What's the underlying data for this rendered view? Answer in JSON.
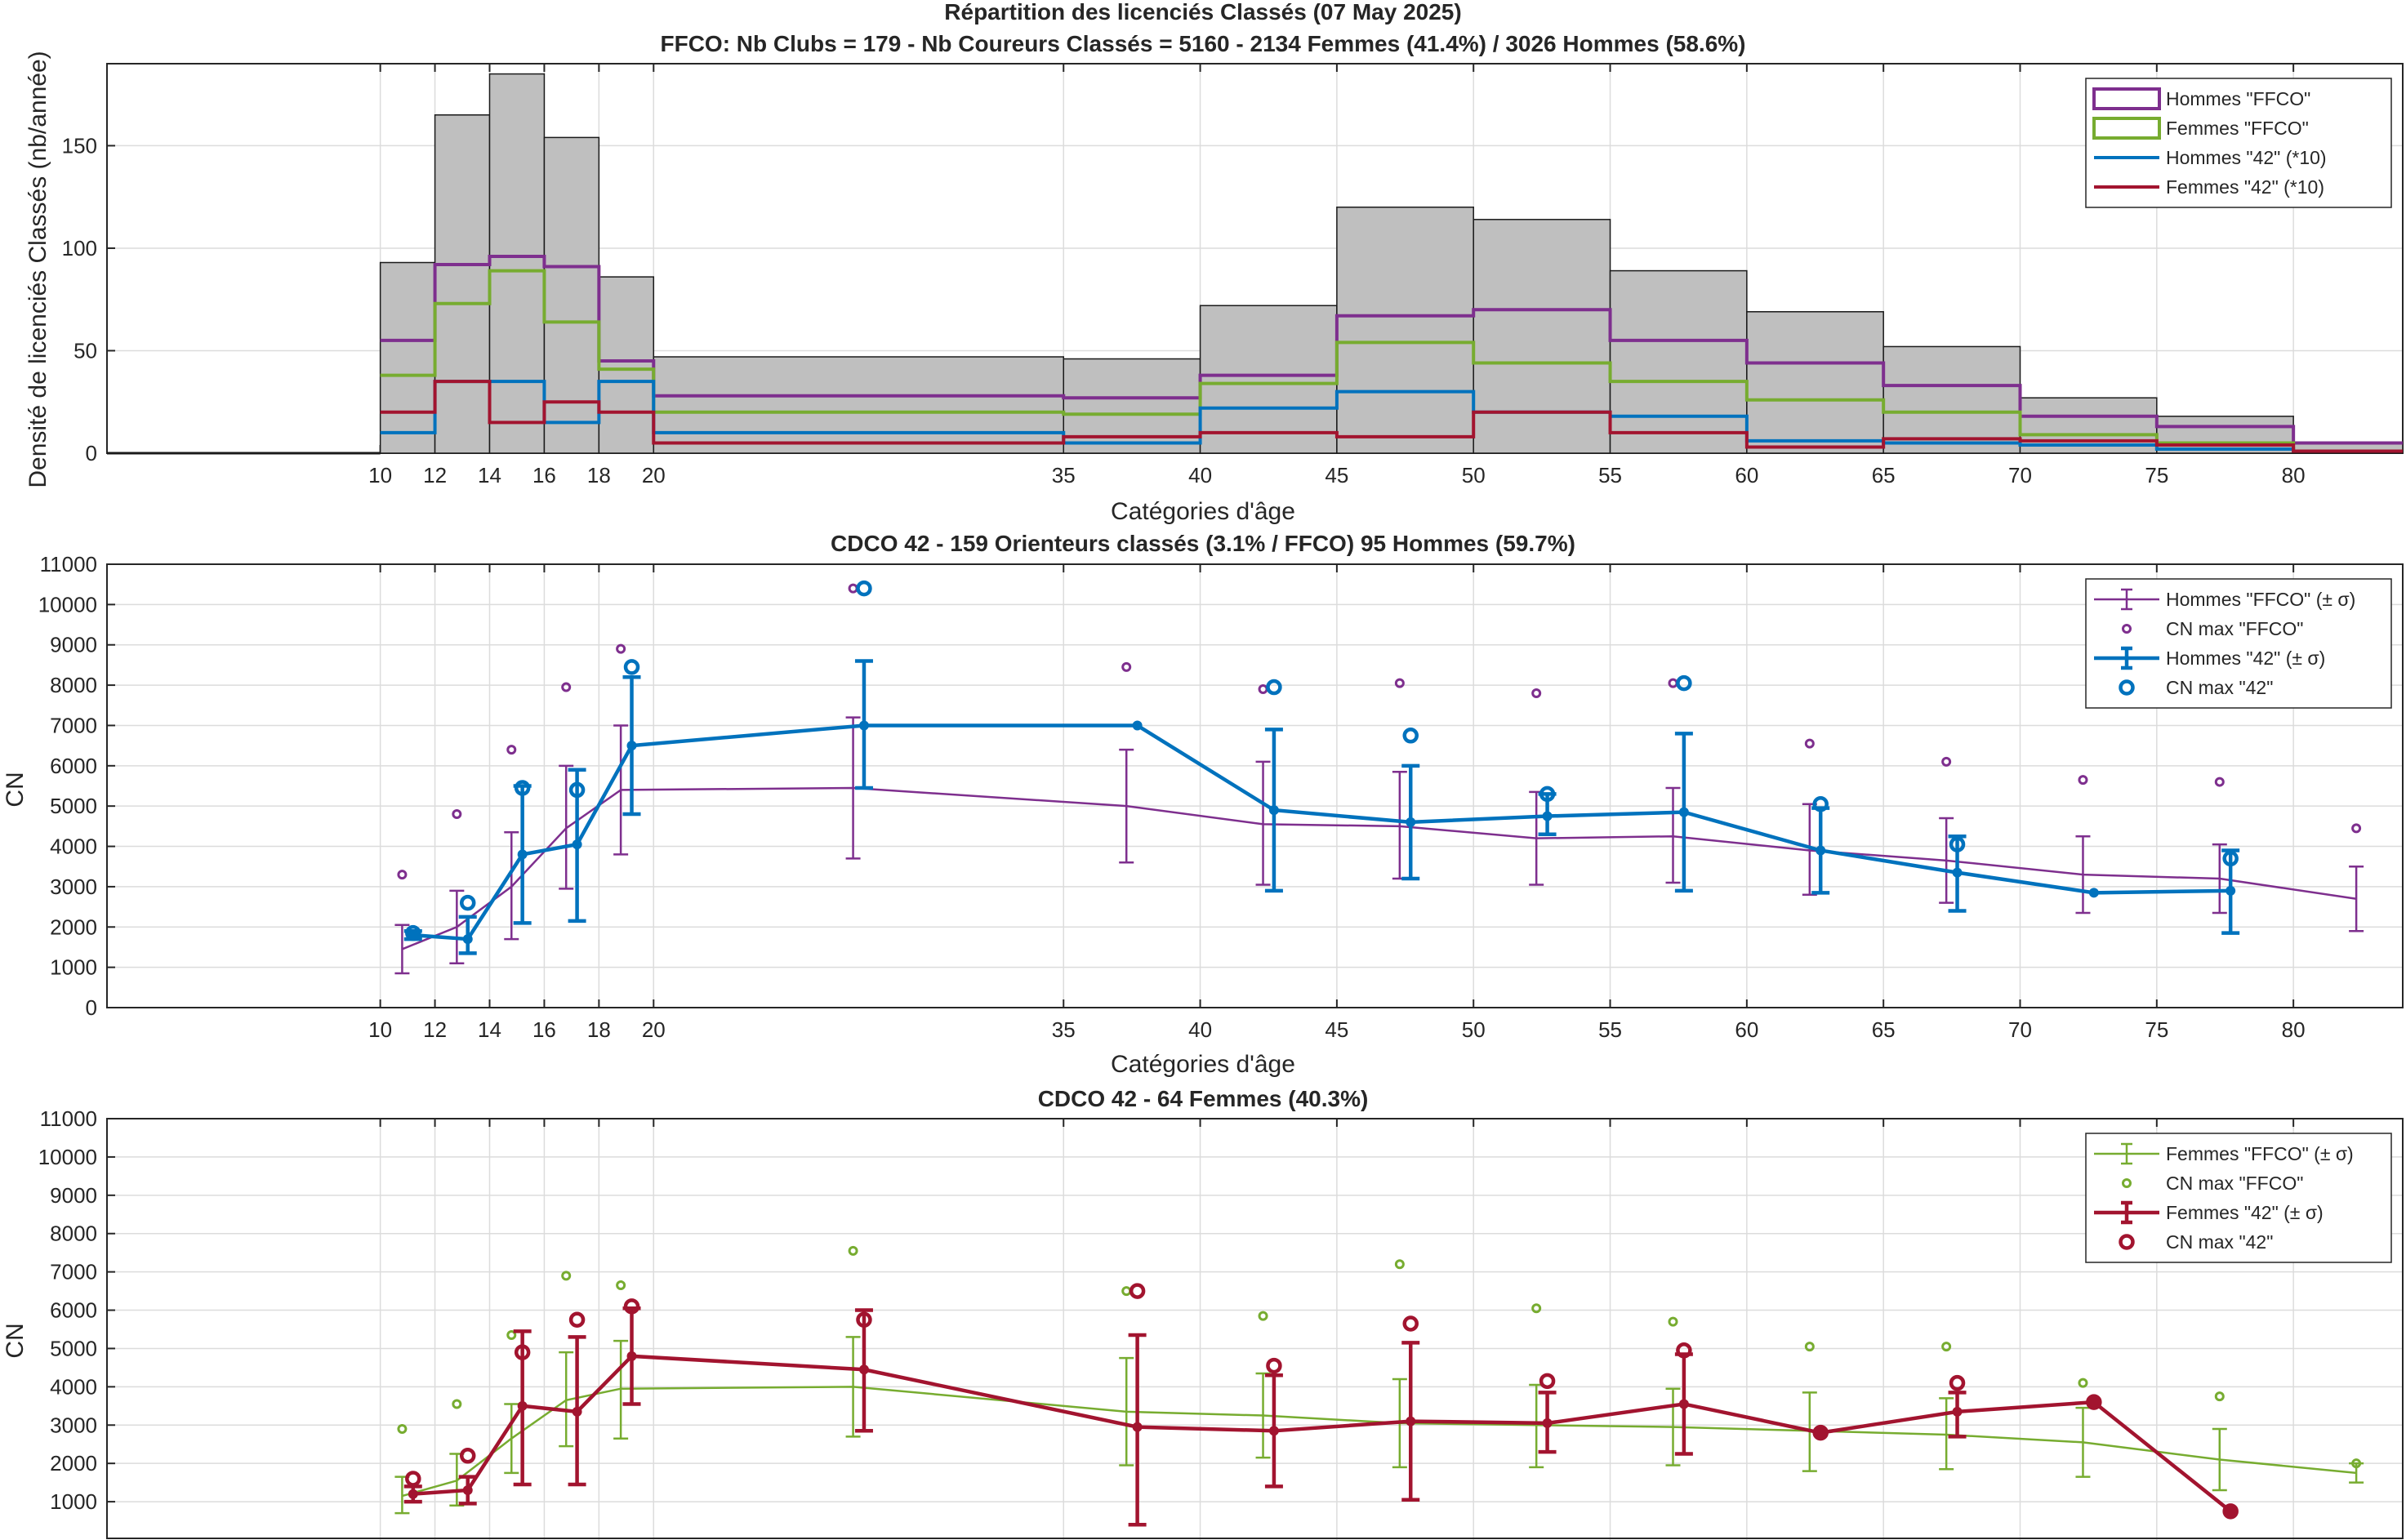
{
  "figure": {
    "title_line1": "Répartition des licenciés Classés (07 May 2025)",
    "title_line2": "FFCO: Nb Clubs = 179   -   Nb Coureurs Classés = 5160   -   2134 Femmes (41.4%) / 3026 Hommes (58.6%)"
  },
  "colors": {
    "hommes_ffco": "#7E2F8E",
    "femmes_ffco": "#77AC30",
    "hommes_42": "#0072BD",
    "femmes_42": "#A2142F",
    "bars": "#BFBFBF"
  },
  "chart_data": [
    {
      "type": "bar",
      "title": "",
      "xlabel": "Catégories d'âge",
      "ylabel": "Densité de licenciés Classés (nb/année)",
      "xlim": [
        0,
        84
      ],
      "ylim": [
        0,
        190
      ],
      "xticks": [
        10,
        12,
        14,
        16,
        18,
        20,
        35,
        40,
        45,
        50,
        55,
        60,
        65,
        70,
        75,
        80
      ],
      "yticks": [
        0,
        50,
        100,
        150
      ],
      "grid": true,
      "legend_position": "top-right",
      "bins": [
        [
          10,
          12
        ],
        [
          12,
          14
        ],
        [
          14,
          16
        ],
        [
          16,
          18
        ],
        [
          18,
          20
        ],
        [
          20,
          35
        ],
        [
          35,
          40
        ],
        [
          40,
          45
        ],
        [
          45,
          50
        ],
        [
          50,
          55
        ],
        [
          55,
          60
        ],
        [
          60,
          65
        ],
        [
          65,
          70
        ],
        [
          70,
          75
        ],
        [
          75,
          80
        ],
        [
          80,
          84
        ]
      ],
      "bar_values": [
        93,
        165,
        185,
        154,
        86,
        47,
        46,
        72,
        120,
        114,
        89,
        69,
        52,
        27,
        18,
        5
      ],
      "series": [
        {
          "name": "Hommes \"FFCO\"",
          "values": [
            55,
            92,
            96,
            91,
            45,
            28,
            27,
            38,
            67,
            70,
            55,
            44,
            33,
            18,
            13,
            5
          ]
        },
        {
          "name": "Femmes \"FFCO\"",
          "values": [
            38,
            73,
            89,
            64,
            41,
            20,
            19,
            34,
            54,
            44,
            35,
            26,
            20,
            9,
            5,
            1
          ]
        },
        {
          "name": "Hommes \"42\" (*10)",
          "values": [
            10,
            35,
            35,
            15,
            35,
            10,
            5,
            22,
            30,
            20,
            18,
            6,
            5,
            4,
            2,
            1
          ]
        },
        {
          "name": "Femmes \"42\" (*10)",
          "values": [
            20,
            35,
            15,
            25,
            20,
            5,
            8,
            10,
            8,
            20,
            10,
            3,
            7,
            6,
            4,
            1
          ]
        }
      ]
    },
    {
      "type": "line",
      "title": "CDCO 42  -  159 Orienteurs classés (3.1% / FFCO)  95 Hommes (59.7%)",
      "xlabel": "Catégories d'âge",
      "ylabel": "CN",
      "xlim": [
        0,
        84
      ],
      "ylim": [
        0,
        11000
      ],
      "xticks": [
        10,
        12,
        14,
        16,
        18,
        20,
        35,
        40,
        45,
        50,
        55,
        60,
        65,
        70,
        75,
        80
      ],
      "yticks": [
        0,
        1000,
        2000,
        3000,
        4000,
        5000,
        6000,
        7000,
        8000,
        9000,
        10000,
        11000
      ],
      "grid": true,
      "legend_position": "top-right",
      "legend": [
        "Hommes \"FFCO\" (± σ)",
        "CN max \"FFCO\"",
        "Hommes \"42\" (± σ)",
        "CN max \"42\""
      ],
      "ffco": {
        "x": [
          10.8,
          12.8,
          14.8,
          16.8,
          18.8,
          27.3,
          37.3,
          42.3,
          47.3,
          52.3,
          57.3,
          62.3,
          67.3,
          72.3,
          77.3,
          82.3
        ],
        "mean": [
          1450,
          2000,
          3000,
          4450,
          5400,
          5450,
          5000,
          4550,
          4500,
          4200,
          4250,
          3900,
          3650,
          3300,
          3200,
          2700
        ],
        "lower": [
          850,
          1100,
          1700,
          2950,
          3800,
          3700,
          3600,
          3050,
          3200,
          3050,
          3100,
          2800,
          2600,
          2350,
          2350,
          1900
        ],
        "upper": [
          2050,
          2900,
          4350,
          6000,
          7000,
          7200,
          6400,
          6100,
          5850,
          5350,
          5450,
          5050,
          4700,
          4250,
          4050,
          3500
        ],
        "cn_max": [
          3300,
          4800,
          6400,
          7950,
          8900,
          10400,
          8450,
          7900,
          8050,
          7800,
          8050,
          6550,
          6100,
          5650,
          5600,
          4450
        ]
      },
      "cd42": {
        "x": [
          11.2,
          13.2,
          15.2,
          17.2,
          19.2,
          27.7,
          37.7,
          42.7,
          47.7,
          52.7,
          57.7,
          62.7,
          67.7,
          72.7,
          77.7
        ],
        "mean": [
          1800,
          1700,
          3800,
          4050,
          6500,
          7000,
          7000,
          4900,
          4600,
          4750,
          4850,
          3900,
          3350,
          2850,
          2900
        ],
        "lower": [
          1700,
          1350,
          2100,
          2150,
          4800,
          5450,
          null,
          2900,
          3200,
          4300,
          2900,
          2850,
          2400,
          null,
          1850
        ],
        "upper": [
          1900,
          2250,
          5500,
          5900,
          8200,
          8600,
          null,
          6900,
          6000,
          5300,
          6800,
          4950,
          4250,
          null,
          3900
        ],
        "cn_max": [
          1850,
          2600,
          5450,
          5400,
          8450,
          10400,
          null,
          7950,
          6750,
          5300,
          8050,
          5050,
          4050,
          null,
          3700
        ]
      }
    },
    {
      "type": "line",
      "title": "CDCO 42  -  64 Femmes (40.3%)",
      "xlabel": "",
      "ylabel": "CN",
      "xlim": [
        0,
        84
      ],
      "ylim": [
        0,
        11000
      ],
      "yticks": [
        1000,
        2000,
        3000,
        4000,
        5000,
        6000,
        7000,
        8000,
        9000,
        10000,
        11000
      ],
      "grid": true,
      "legend_position": "top-right",
      "legend": [
        "Femmes \"FFCO\" (± σ)",
        "CN max \"FFCO\"",
        "Femmes \"42\" (± σ)",
        "CN max \"42\""
      ],
      "ffco": {
        "x": [
          10.8,
          12.8,
          14.8,
          16.8,
          18.8,
          27.3,
          37.3,
          42.3,
          47.3,
          52.3,
          57.3,
          62.3,
          67.3,
          72.3,
          77.3,
          82.3
        ],
        "mean": [
          1150,
          1550,
          2650,
          3650,
          3950,
          4000,
          3350,
          3250,
          3050,
          3000,
          2950,
          2850,
          2750,
          2550,
          2100,
          1750
        ],
        "lower": [
          700,
          900,
          1750,
          2450,
          2650,
          2700,
          1950,
          2150,
          1900,
          1900,
          1950,
          1800,
          1850,
          1650,
          1300,
          1500
        ],
        "upper": [
          1650,
          2250,
          3550,
          4900,
          5200,
          5300,
          4750,
          4350,
          4200,
          4050,
          3950,
          3850,
          3700,
          3450,
          2900,
          2000
        ],
        "cn_max": [
          2900,
          3550,
          5350,
          6900,
          6650,
          7550,
          6500,
          5850,
          7200,
          6050,
          5700,
          5050,
          5050,
          4100,
          3750,
          2000
        ]
      },
      "cd42": {
        "x": [
          11.2,
          13.2,
          15.2,
          17.2,
          19.2,
          27.7,
          37.7,
          42.7,
          47.7,
          52.7,
          57.7,
          62.7,
          67.7,
          72.7,
          77.7
        ],
        "mean": [
          1200,
          1300,
          3500,
          3350,
          4800,
          4450,
          2950,
          2850,
          3100,
          3050,
          3550,
          2800,
          3350,
          3600,
          750
        ],
        "lower": [
          1000,
          950,
          1450,
          1450,
          3550,
          2850,
          400,
          1400,
          1050,
          2300,
          2250,
          null,
          2700,
          null,
          null
        ],
        "upper": [
          1400,
          1650,
          5450,
          5300,
          6050,
          6000,
          5350,
          4300,
          5150,
          3850,
          4850,
          null,
          3850,
          null,
          null
        ],
        "cn_max": [
          1600,
          2200,
          4900,
          5750,
          6100,
          5750,
          6500,
          4550,
          5650,
          4150,
          4950,
          2800,
          4100,
          3600,
          750
        ]
      }
    }
  ]
}
